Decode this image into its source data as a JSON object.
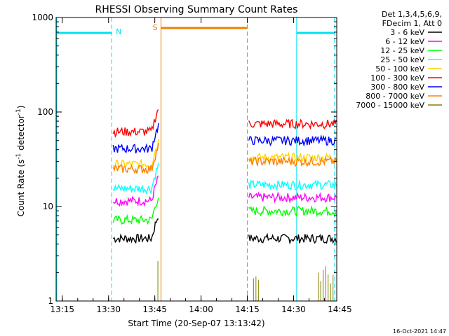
{
  "chart_data": {
    "type": "line",
    "title": "RHESSI Observing Summary Count Rates",
    "xlabel": "Start Time (20-Sep-07 13:13:42)",
    "ylabel_main": "Count Rate (s",
    "ylabel_sup1": "-1",
    "ylabel_mid": " detector",
    "ylabel_sup2": "-1",
    "ylabel_end": ")",
    "yscale": "log",
    "ylim": [
      1,
      1000
    ],
    "xlim_minutes": [
      13.0,
      104.0
    ],
    "x_tick_labels": [
      "13:15",
      "13:30",
      "13:45",
      "14:00",
      "14:15",
      "14:30",
      "14:45"
    ],
    "x_tick_minutes": [
      15,
      30,
      45,
      60,
      75,
      90,
      105
    ],
    "y_tick_labels": [
      "1",
      "10",
      "100",
      "1000"
    ],
    "y_tick_values": [
      1,
      10,
      100,
      1000
    ],
    "legend_header": [
      "Det 1,3,4,5,6,9,",
      "FDecim 1, Att 0"
    ],
    "footer_stamp": "16-Oct-2021 14:47",
    "annotations": {
      "night": {
        "label": "N",
        "color": "#00e0f0"
      },
      "saa": {
        "label": "S",
        "color": "#f08000"
      }
    },
    "series": [
      {
        "name": "3 - 6 keV",
        "color": "#000000",
        "segments": [
          [
            31.5,
            46.5,
            4.6
          ],
          [
            75.5,
            104,
            4.6
          ]
        ]
      },
      {
        "name": "6 - 12 keV",
        "color": "#ff00ff",
        "segments": [
          [
            31.5,
            46.5,
            11.5
          ],
          [
            75.5,
            104,
            12.5
          ]
        ]
      },
      {
        "name": "12 - 25 keV",
        "color": "#00ff00",
        "segments": [
          [
            31.5,
            46.5,
            7.2
          ],
          [
            75.5,
            104,
            9.0
          ]
        ]
      },
      {
        "name": "25 - 50 keV",
        "color": "#00ffff",
        "segments": [
          [
            31.5,
            46.5,
            15.5
          ],
          [
            75.5,
            104,
            17.0
          ]
        ]
      },
      {
        "name": "50 - 100 keV",
        "color": "#ffd400",
        "segments": [
          [
            31.5,
            46.5,
            28
          ],
          [
            75.5,
            104,
            33
          ]
        ]
      },
      {
        "name": "100 - 300 keV",
        "color": "#ff0000",
        "segments": [
          [
            31.5,
            46.5,
            62
          ],
          [
            75.5,
            104,
            75
          ]
        ]
      },
      {
        "name": "300 - 800 keV",
        "color": "#0000ff",
        "segments": [
          [
            31.5,
            46.5,
            41
          ],
          [
            75.5,
            104,
            50
          ]
        ]
      },
      {
        "name": "800 - 7000 keV",
        "color": "#ff8000",
        "segments": [
          [
            31.5,
            46.5,
            25
          ],
          [
            75.5,
            104,
            30
          ]
        ]
      },
      {
        "name": "7000 - 15000 keV",
        "color": "#808000",
        "segments": [
          [
            46.0,
            46.5,
            2.0
          ],
          [
            77.0,
            79.0,
            1.8
          ],
          [
            98.0,
            103.5,
            1.6
          ]
        ]
      }
    ]
  }
}
